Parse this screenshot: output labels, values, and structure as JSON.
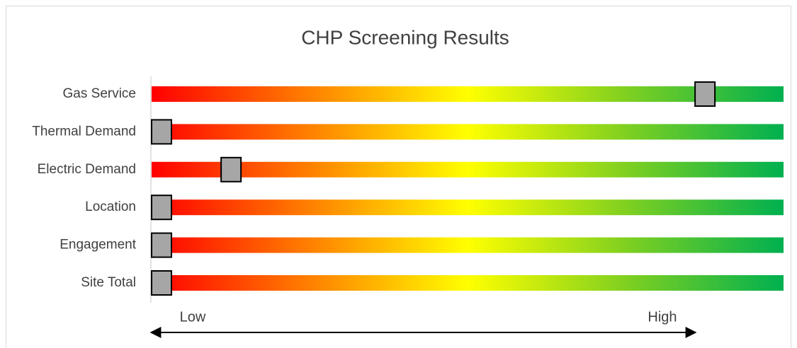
{
  "chart_data": {
    "type": "gauge",
    "title": "CHP Screening Results",
    "categories": [
      "Gas Service",
      "Thermal Demand",
      "Electric Demand",
      "Location",
      "Engagement",
      "Site Total"
    ],
    "values": [
      86,
      0,
      11,
      0,
      0,
      0
    ],
    "xlim": [
      0,
      100
    ],
    "low_label": "Low",
    "high_label": "High",
    "marker_color": "#a6a6a6",
    "gradient": [
      "#ff0000",
      "#ff8000",
      "#ffff00",
      "#80d020",
      "#00b050"
    ]
  }
}
